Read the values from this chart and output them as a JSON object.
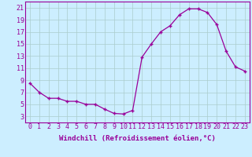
{
  "hours": [
    0,
    1,
    2,
    3,
    4,
    5,
    6,
    7,
    8,
    9,
    10,
    11,
    12,
    13,
    14,
    15,
    16,
    17,
    18,
    19,
    20,
    21,
    22,
    23
  ],
  "temps": [
    8.5,
    7.0,
    6.0,
    6.0,
    5.5,
    5.5,
    5.0,
    5.0,
    4.2,
    3.5,
    3.4,
    4.0,
    12.8,
    15.0,
    17.0,
    18.0,
    19.8,
    20.8,
    20.8,
    20.2,
    18.2,
    13.8,
    11.2,
    10.5
  ],
  "line_color": "#990099",
  "marker": "+",
  "marker_size": 3.5,
  "marker_lw": 1.0,
  "bg_color": "#cceeff",
  "grid_color": "#aacccc",
  "xlabel": "Windchill (Refroidissement éolien,°C)",
  "ylim": [
    2,
    22
  ],
  "xlim": [
    -0.5,
    23.5
  ],
  "yticks": [
    3,
    5,
    7,
    9,
    11,
    13,
    15,
    17,
    19,
    21
  ],
  "xtick_labels": [
    "0",
    "1",
    "2",
    "3",
    "4",
    "5",
    "6",
    "7",
    "8",
    "9",
    "10",
    "11",
    "12",
    "13",
    "14",
    "15",
    "16",
    "17",
    "18",
    "19",
    "20",
    "21",
    "22",
    "23"
  ],
  "xlabel_fontsize": 6.5,
  "tick_fontsize": 6.0,
  "linewidth": 0.9
}
